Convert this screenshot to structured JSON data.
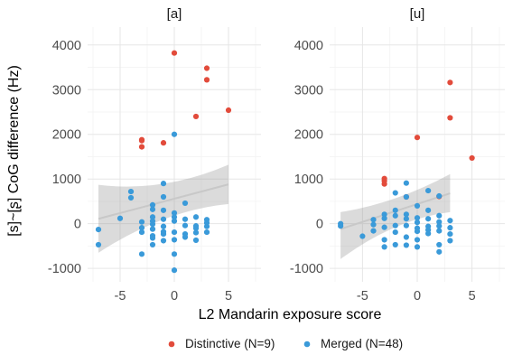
{
  "chart_data": {
    "type": "scatter",
    "xlabel": "L2 Mandarin exposure score",
    "ylabel": "[s]~[ʂ] CoG difference (Hz)",
    "xlim": [
      -8,
      8
    ],
    "ylim": [
      -1300,
      4400
    ],
    "x_ticks": [
      -5,
      0,
      5
    ],
    "y_ticks": [
      -1000,
      0,
      1000,
      2000,
      3000,
      4000
    ],
    "grid": true,
    "legend_position": "bottom",
    "legend": [
      {
        "label": "Distinctive (N=9)",
        "color": "#E24B3B"
      },
      {
        "label": "Merged (N=48)",
        "color": "#3A9AD9"
      }
    ],
    "panels": [
      {
        "title": "[a]",
        "trend": {
          "x": [
            -7,
            5
          ],
          "y": [
            110,
            880
          ],
          "band_low": [
            -650,
            440
          ],
          "band_high": [
            870,
            1320
          ]
        },
        "series": [
          {
            "name": "Distinctive (N=9)",
            "points": [
              [
                -3,
                1880
              ],
              [
                -3,
                1720
              ],
              [
                -1,
                1810
              ],
              [
                0,
                3820
              ],
              [
                2,
                2400
              ],
              [
                3,
                3480
              ],
              [
                3,
                3220
              ],
              [
                5,
                2540
              ],
              [
                -3,
                1860
              ]
            ]
          },
          {
            "name": "Merged (N=48)",
            "points": [
              [
                -7,
                -130
              ],
              [
                -7,
                -470
              ],
              [
                -5,
                120
              ],
              [
                -4,
                720
              ],
              [
                -4,
                580
              ],
              [
                -3,
                -90
              ],
              [
                -3,
                -680
              ],
              [
                -2,
                -10
              ],
              [
                -2,
                -270
              ],
              [
                -1,
                900
              ],
              [
                -1,
                -60
              ],
              [
                -1,
                -230
              ],
              [
                -1,
                -180
              ],
              [
                0,
                2000
              ],
              [
                0,
                -1040
              ],
              [
                0,
                -680
              ],
              [
                0,
                -190
              ],
              [
                1,
                460
              ],
              [
                1,
                -40
              ],
              [
                1,
                -230
              ],
              [
                -2,
                420
              ],
              [
                -2,
                320
              ],
              [
                -2,
                150
              ],
              [
                -1,
                300
              ],
              [
                0,
                150
              ],
              [
                -3,
                -190
              ],
              [
                -2,
                -320
              ],
              [
                -1,
                -380
              ],
              [
                0,
                -360
              ],
              [
                2,
                150
              ],
              [
                2,
                -50
              ],
              [
                2,
                -200
              ],
              [
                2,
                -370
              ],
              [
                3,
                90
              ],
              [
                3,
                -60
              ],
              [
                3,
                -190
              ],
              [
                0,
                240
              ],
              [
                -1,
                600
              ],
              [
                -2,
                -120
              ],
              [
                1,
                100
              ],
              [
                -3,
                40
              ],
              [
                -2,
                -470
              ],
              [
                2,
                -100
              ],
              [
                1,
                -300
              ],
              [
                0,
                60
              ],
              [
                -1,
                100
              ],
              [
                3,
                20
              ],
              [
                -2,
                60
              ]
            ]
          }
        ]
      },
      {
        "title": "[u]",
        "trend": {
          "x": [
            -7,
            3
          ],
          "y": [
            -120,
            680
          ],
          "band_low": [
            -790,
            260
          ],
          "band_high": [
            260,
            1110
          ]
        },
        "series": [
          {
            "name": "Distinctive (N=9)",
            "points": [
              [
                -3,
                1010
              ],
              [
                -3,
                890
              ],
              [
                -1,
                600
              ],
              [
                0,
                1930
              ],
              [
                2,
                610
              ],
              [
                3,
                3160
              ],
              [
                3,
                2370
              ],
              [
                5,
                1470
              ],
              [
                -3,
                960
              ]
            ]
          },
          {
            "name": "Merged (N=48)",
            "points": [
              [
                -7,
                0
              ],
              [
                -7,
                -50
              ],
              [
                -5,
                -280
              ],
              [
                -4,
                90
              ],
              [
                -4,
                -160
              ],
              [
                -3,
                -520
              ],
              [
                -3,
                -360
              ],
              [
                -3,
                -80
              ],
              [
                -2,
                690
              ],
              [
                -2,
                -470
              ],
              [
                -2,
                -190
              ],
              [
                -1,
                910
              ],
              [
                -1,
                600
              ],
              [
                -1,
                -300
              ],
              [
                -1,
                -480
              ],
              [
                0,
                400
              ],
              [
                0,
                130
              ],
              [
                0,
                -170
              ],
              [
                0,
                -360
              ],
              [
                1,
                740
              ],
              [
                1,
                110
              ],
              [
                1,
                -60
              ],
              [
                2,
                620
              ],
              [
                2,
                180
              ],
              [
                2,
                -160
              ],
              [
                2,
                -470
              ],
              [
                2,
                -630
              ],
              [
                3,
                70
              ],
              [
                3,
                -90
              ],
              [
                3,
                -230
              ],
              [
                -3,
                120
              ],
              [
                -2,
                300
              ],
              [
                -1,
                210
              ],
              [
                0,
                30
              ],
              [
                1,
                300
              ],
              [
                -1,
                -40
              ],
              [
                -2,
                -40
              ],
              [
                0,
                -520
              ],
              [
                1,
                -220
              ],
              [
                2,
                -50
              ],
              [
                3,
                -380
              ],
              [
                -4,
                -20
              ],
              [
                -3,
                210
              ],
              [
                -1,
                110
              ],
              [
                0,
                -100
              ],
              [
                1,
                -140
              ],
              [
                2,
                40
              ],
              [
                -2,
                180
              ]
            ]
          }
        ]
      }
    ]
  }
}
